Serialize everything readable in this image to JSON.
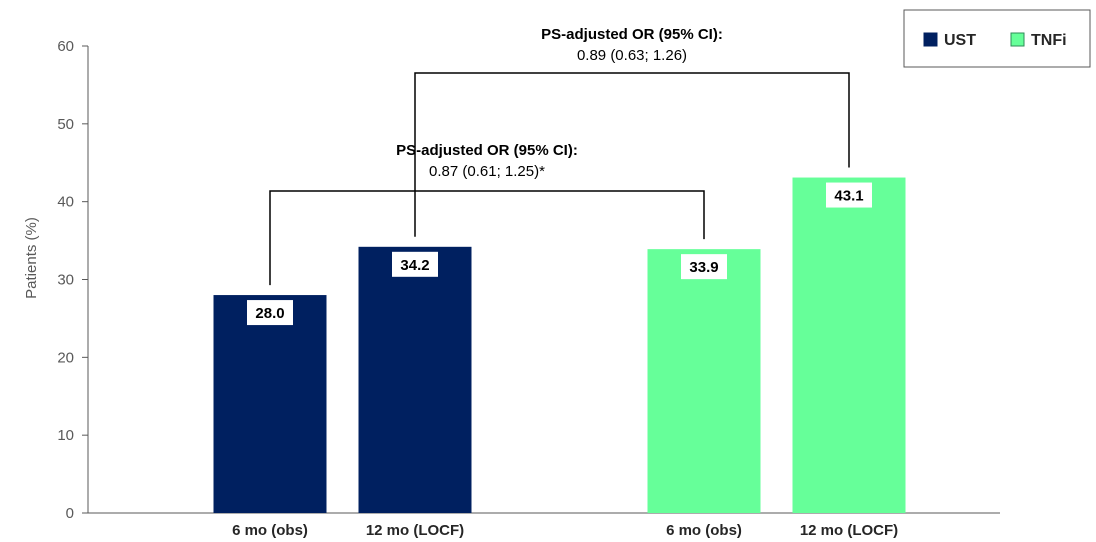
{
  "chart_data": {
    "type": "bar",
    "ylabel": "Patients (%)",
    "xlabel": "",
    "ylim": [
      0,
      60
    ],
    "yticks": [
      0,
      10,
      20,
      30,
      40,
      50,
      60
    ],
    "grid": false,
    "legend_position": "top-right",
    "series": [
      {
        "name": "UST",
        "color": "#002060",
        "categories": [
          "6 mo (obs)",
          "12 mo (LOCF)"
        ],
        "values": [
          28.0,
          34.2
        ],
        "labels": [
          "28.0",
          "34.2"
        ]
      },
      {
        "name": "TNFi",
        "color": "#66FF99",
        "categories": [
          "6 mo (obs)",
          "12 mo (LOCF)"
        ],
        "values": [
          33.9,
          43.1
        ],
        "labels": [
          "33.9",
          "43.1"
        ]
      }
    ],
    "annotations": [
      {
        "title": "PS-adjusted OR (95% CI):",
        "text": "0.87 (0.61; 1.25)*",
        "compares": [
          "UST 6 mo (obs)",
          "TNFi 6 mo (obs)"
        ]
      },
      {
        "title": "PS-adjusted OR (95% CI):",
        "text": "0.89 (0.63; 1.26)",
        "compares": [
          "UST 12 mo (LOCF)",
          "TNFi 12 mo (LOCF)"
        ]
      }
    ]
  }
}
